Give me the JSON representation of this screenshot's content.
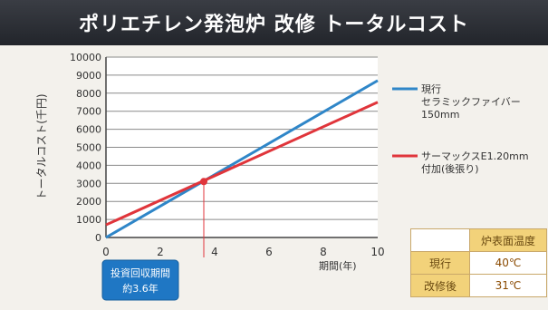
{
  "title": "ポリエチレン発泡炉 改修 トータルコスト",
  "chart_data": {
    "type": "line",
    "title": "",
    "xlabel": "期間(年)",
    "ylabel": "トータルコスト(千円)",
    "xlim": [
      0,
      10
    ],
    "ylim": [
      0,
      10000
    ],
    "x_ticks": [
      0,
      2,
      4,
      6,
      8,
      10
    ],
    "y_ticks": [
      0,
      1000,
      2000,
      3000,
      4000,
      5000,
      6000,
      7000,
      8000,
      9000,
      10000
    ],
    "grid": true,
    "legend_position": "right",
    "series": [
      {
        "name": "現行 セラミックファイバー 150mm",
        "color": "#2f86c8",
        "x": [
          0,
          10
        ],
        "y": [
          0,
          8700
        ]
      },
      {
        "name": "サーマックスE1.20mm 付加(後張り)",
        "color": "#e0353b",
        "x": [
          0,
          10
        ],
        "y": [
          700,
          7500
        ]
      }
    ],
    "annotation": {
      "x": 3.6,
      "y": 3100,
      "text": "投資回収期間 約3.6年"
    }
  },
  "legend": [
    {
      "line1": "現行",
      "line2": "セラミックファイバー",
      "line3": "150mm",
      "color": "#2f86c8"
    },
    {
      "line1": "サーマックスE1.20mm",
      "line2": "付加(後張り)",
      "line3": "",
      "color": "#e0353b"
    }
  ],
  "payback_box": {
    "line1": "投資回収期間",
    "line2": "約3.6年"
  },
  "temp_table": {
    "header": "炉表面温度",
    "rows": [
      {
        "label": "現行",
        "value": "40℃"
      },
      {
        "label": "改修後",
        "value": "31℃"
      }
    ]
  }
}
